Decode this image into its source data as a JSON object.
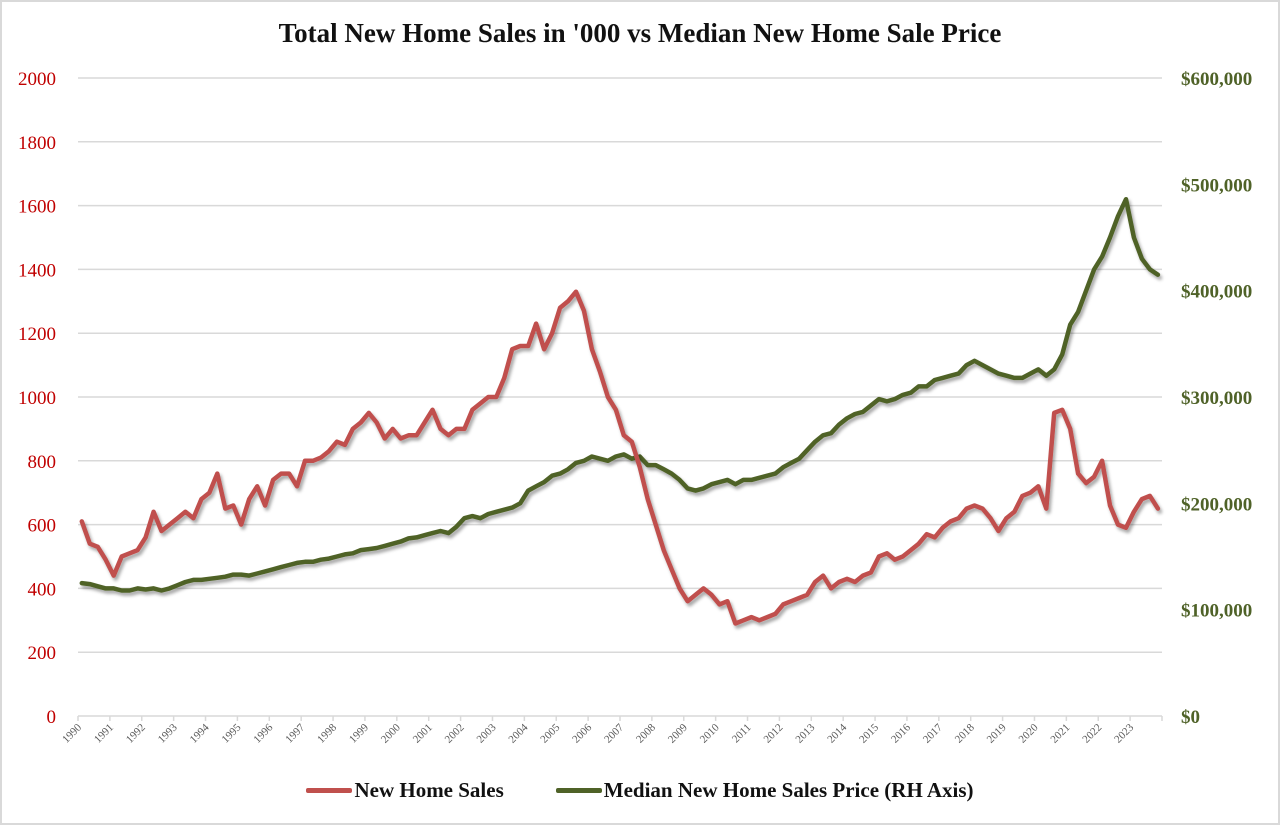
{
  "chart_data": {
    "type": "line",
    "title": "Total New Home Sales in '000 vs Median New Home Sale Price",
    "xlabel": "",
    "ylabel": "",
    "y2label": "",
    "x_range": [
      1990,
      2024
    ],
    "x_ticks": [
      "1990",
      "1991",
      "1992",
      "1993",
      "1994",
      "1995",
      "1996",
      "1997",
      "1998",
      "1999",
      "2000",
      "2001",
      "2002",
      "2003",
      "2004",
      "2005",
      "2006",
      "2007",
      "2008",
      "2009",
      "2010",
      "2011",
      "2012",
      "2013",
      "2014",
      "2015",
      "2016",
      "2017",
      "2018",
      "2019",
      "2020",
      "2021",
      "2022",
      "2023"
    ],
    "ylim": [
      0,
      2000
    ],
    "y_ticks": [
      "0",
      "200",
      "400",
      "600",
      "800",
      "1000",
      "1200",
      "1400",
      "1600",
      "1800",
      "2000"
    ],
    "y2lim": [
      0,
      600000
    ],
    "y2_ticks": [
      "$0",
      "$100,000",
      "$200,000",
      "$300,000",
      "$400,000",
      "$500,000",
      "$600,000"
    ],
    "grid": true,
    "legend_position": "bottom",
    "x_frequency": "quarterly, starting 1990 Q1",
    "series": [
      {
        "name": "New Home Sales",
        "axis": "left",
        "color": "#c0504d",
        "values": [
          610,
          540,
          530,
          490,
          440,
          500,
          510,
          520,
          560,
          640,
          580,
          600,
          620,
          640,
          620,
          680,
          700,
          760,
          650,
          660,
          600,
          680,
          720,
          660,
          740,
          760,
          760,
          720,
          800,
          800,
          810,
          830,
          860,
          850,
          900,
          920,
          950,
          920,
          870,
          900,
          870,
          880,
          880,
          920,
          960,
          900,
          880,
          900,
          900,
          960,
          980,
          1000,
          1000,
          1060,
          1150,
          1160,
          1160,
          1230,
          1150,
          1200,
          1280,
          1300,
          1330,
          1270,
          1150,
          1080,
          1000,
          960,
          880,
          860,
          780,
          680,
          600,
          520,
          460,
          400,
          360,
          380,
          400,
          380,
          350,
          360,
          290,
          300,
          310,
          300,
          310,
          320,
          350,
          360,
          370,
          380,
          420,
          440,
          400,
          420,
          430,
          420,
          440,
          450,
          500,
          510,
          490,
          500,
          520,
          540,
          570,
          560,
          590,
          610,
          620,
          650,
          660,
          650,
          620,
          580,
          620,
          640,
          690,
          700,
          720,
          650,
          950,
          960,
          900,
          760,
          730,
          750,
          800,
          660,
          600,
          590,
          640,
          680,
          690,
          650
        ]
      },
      {
        "name": "Median New Home Sales Price (RH Axis)",
        "axis": "right",
        "color": "#4f6228",
        "values": [
          125000,
          124000,
          122000,
          120000,
          120000,
          118000,
          118000,
          120000,
          119000,
          120000,
          118000,
          120000,
          123000,
          126000,
          128000,
          128000,
          129000,
          130000,
          131000,
          133000,
          133000,
          132000,
          134000,
          136000,
          138000,
          140000,
          142000,
          144000,
          145000,
          145000,
          147000,
          148000,
          150000,
          152000,
          153000,
          156000,
          157000,
          158000,
          160000,
          162000,
          164000,
          167000,
          168000,
          170000,
          172000,
          174000,
          172000,
          178000,
          186000,
          188000,
          186000,
          190000,
          192000,
          194000,
          196000,
          200000,
          212000,
          216000,
          220000,
          226000,
          228000,
          232000,
          238000,
          240000,
          244000,
          242000,
          240000,
          244000,
          246000,
          242000,
          244000,
          236000,
          236000,
          232000,
          228000,
          222000,
          214000,
          212000,
          214000,
          218000,
          220000,
          222000,
          218000,
          222000,
          222000,
          224000,
          226000,
          228000,
          234000,
          238000,
          242000,
          250000,
          258000,
          264000,
          266000,
          274000,
          280000,
          284000,
          286000,
          292000,
          298000,
          296000,
          298000,
          302000,
          304000,
          310000,
          310000,
          316000,
          318000,
          320000,
          322000,
          330000,
          334000,
          330000,
          326000,
          322000,
          320000,
          318000,
          318000,
          322000,
          326000,
          320000,
          326000,
          340000,
          368000,
          380000,
          400000,
          420000,
          432000,
          450000,
          470000,
          486000,
          450000,
          430000,
          420000,
          415000
        ]
      }
    ]
  },
  "colors": {
    "left_axis": "#c00000",
    "right_axis": "#4f6228",
    "grid": "#d9d9d9",
    "x_tick_label": "#595959"
  }
}
